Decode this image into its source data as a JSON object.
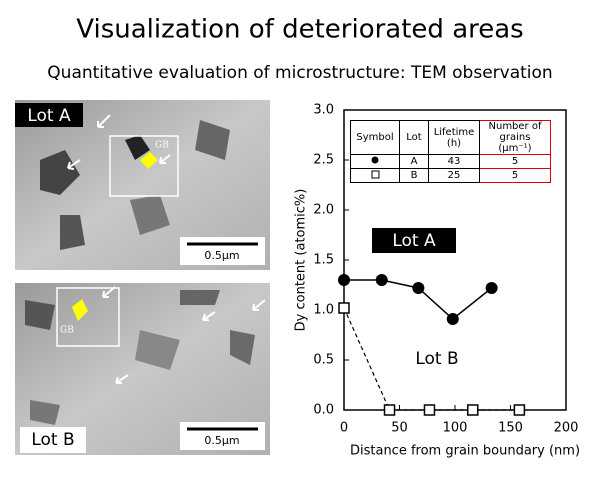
{
  "title": "Visualization of deteriorated areas",
  "subtitle": "Quantitative evaluation of microstructure: TEM observation",
  "images": [
    {
      "label": "Lot A",
      "scale": "0.5µm",
      "gb": "GB"
    },
    {
      "label": "Lot B",
      "scale": "0.5µm",
      "gb": "GB"
    }
  ],
  "chart_data": {
    "type": "line",
    "xlabel": "Distance from grain boundary (nm)",
    "ylabel": "Dy content (atomic%)",
    "xlim": [
      0,
      200
    ],
    "xticks": [
      0,
      50,
      100,
      150,
      200
    ],
    "ylim": [
      0,
      3
    ],
    "yticks": [
      {
        "value": 0,
        "label": "0.0"
      },
      {
        "value": 0.5,
        "label": "0.5"
      },
      {
        "value": 1,
        "label": "1.0"
      },
      {
        "value": 1.5,
        "label": "1.5"
      },
      {
        "value": 2,
        "label": "2.0"
      },
      {
        "value": 2.5,
        "label": "2.5"
      },
      {
        "value": 3,
        "label": "3.0"
      }
    ],
    "series": [
      {
        "name": "Lot A",
        "color": "#000000",
        "marker": "circle",
        "linestyle": "solid",
        "x": [
          0,
          34,
          67,
          98,
          133
        ],
        "values": [
          1.3,
          1.3,
          1.22,
          0.91,
          1.22
        ]
      },
      {
        "name": "Lot B",
        "color": "#000000",
        "marker": "square",
        "linestyle": "dashed",
        "x": [
          0,
          41,
          77,
          116,
          158
        ],
        "values": [
          1.02,
          0,
          0,
          0,
          0
        ]
      }
    ],
    "table": {
      "headers": [
        "Symbol",
        "Lot",
        "Lifetime (h)",
        "Number of grains (µm⁻¹)"
      ],
      "rows": [
        [
          "A",
          "43",
          "5"
        ],
        [
          "B",
          "25",
          "5"
        ]
      ]
    }
  }
}
